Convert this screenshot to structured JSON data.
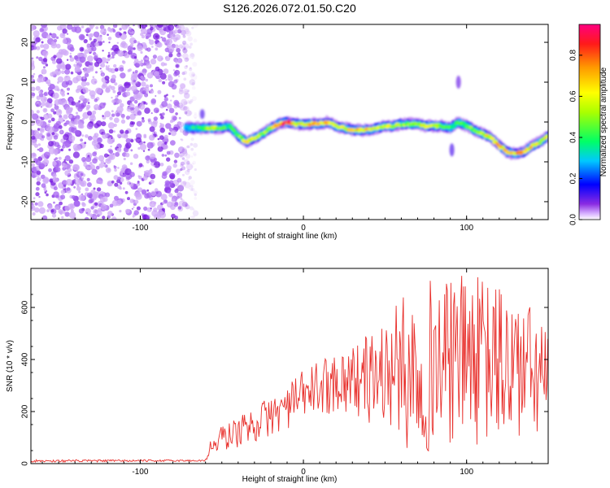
{
  "chart_data": [
    {
      "type": "heatmap",
      "title": "S126.2026.072.01.50.C20",
      "xlabel": "Height of straight line (km)",
      "ylabel": "Frequency (Hz)",
      "xlim": [
        -167,
        150
      ],
      "ylim": [
        -24.5,
        24.5
      ],
      "xticks": [
        -100,
        0,
        100
      ],
      "xtick_labels": [
        "-100",
        "0",
        "100"
      ],
      "yticks": [
        -20,
        -10,
        0,
        10,
        20
      ],
      "ytick_labels": [
        "-20",
        "-10",
        "0",
        "10",
        "20"
      ],
      "noise_region_x": [
        -167,
        -70
      ],
      "ridge": {
        "x": [
          -72,
          -65,
          -60,
          -55,
          -50,
          -45,
          -40,
          -35,
          -30,
          -25,
          -20,
          -15,
          -10,
          -5,
          0,
          5,
          10,
          15,
          20,
          25,
          30,
          35,
          40,
          45,
          50,
          55,
          60,
          65,
          70,
          75,
          80,
          85,
          90,
          95,
          100,
          105,
          110,
          115,
          120,
          125,
          130,
          135,
          140,
          145,
          150
        ],
        "freq": [
          -1.5,
          -1.5,
          -1.5,
          -1.5,
          -1.5,
          -1.0,
          -3.5,
          -5.0,
          -4.0,
          -3.0,
          -1.5,
          -0.5,
          0,
          -0.5,
          -0.5,
          -0.5,
          -0.5,
          0,
          -1.0,
          -1.5,
          -2.0,
          -2.0,
          -2.0,
          -1.5,
          -1.0,
          -1.0,
          -0.5,
          -0.5,
          -0.5,
          -1.0,
          -1.0,
          -1.0,
          -1.5,
          0,
          -1.0,
          -2.0,
          -3.0,
          -4.0,
          -6.0,
          -7.5,
          -8.0,
          -7.5,
          -6.0,
          -5.0,
          -3.5
        ],
        "amplitude": [
          0.3,
          0.45,
          0.55,
          0.6,
          0.5,
          0.4,
          0.5,
          0.75,
          0.65,
          0.55,
          0.6,
          0.8,
          0.95,
          0.7,
          0.65,
          0.8,
          0.9,
          0.7,
          0.6,
          0.65,
          0.7,
          0.75,
          0.7,
          0.6,
          0.6,
          0.65,
          0.6,
          0.55,
          0.6,
          0.65,
          0.6,
          0.55,
          0.5,
          0.45,
          0.5,
          0.55,
          0.6,
          0.7,
          0.75,
          0.7,
          0.8,
          0.75,
          0.7,
          0.7,
          0.65
        ]
      },
      "colorbar": {
        "label": "Normalized spectral amplitude",
        "range": [
          0,
          0.95
        ],
        "ticks": [
          0.0,
          0.2,
          0.4,
          0.6,
          0.8
        ],
        "tick_labels": [
          "0.0",
          "0.2",
          "0.4",
          "0.6",
          "0.8"
        ]
      }
    },
    {
      "type": "line",
      "title": "",
      "xlabel": "Height of straight line (km)",
      "ylabel": "SNR (10 * v/v)",
      "xlim": [
        -167,
        150
      ],
      "ylim": [
        0,
        750
      ],
      "xticks": [
        -100,
        0,
        100
      ],
      "xtick_labels": [
        "-100",
        "0",
        "100"
      ],
      "yticks": [
        0,
        200,
        400,
        600
      ],
      "ytick_labels": [
        "0",
        "200",
        "400",
        "600"
      ],
      "series": [
        {
          "name": "SNR",
          "color": "#e8302c",
          "envelope": {
            "x": [
              -167,
              -60,
              -58,
              -50,
              -40,
              -30,
              -20,
              -10,
              0,
              10,
              20,
              30,
              40,
              50,
              60,
              65,
              70,
              80,
              90,
              100,
              110,
              120,
              130,
              140,
              150
            ],
            "low": [
              5,
              8,
              20,
              40,
              60,
              80,
              100,
              130,
              160,
              180,
              200,
              180,
              150,
              120,
              80,
              30,
              20,
              40,
              60,
              70,
              50,
              40,
              40,
              80,
              100
            ],
            "high": [
              15,
              15,
              80,
              150,
              180,
              220,
              260,
              300,
              360,
              400,
              430,
              460,
              500,
              560,
              640,
              660,
              690,
              720,
              700,
              740,
              710,
              700,
              680,
              600,
              520
            ]
          }
        }
      ]
    }
  ]
}
